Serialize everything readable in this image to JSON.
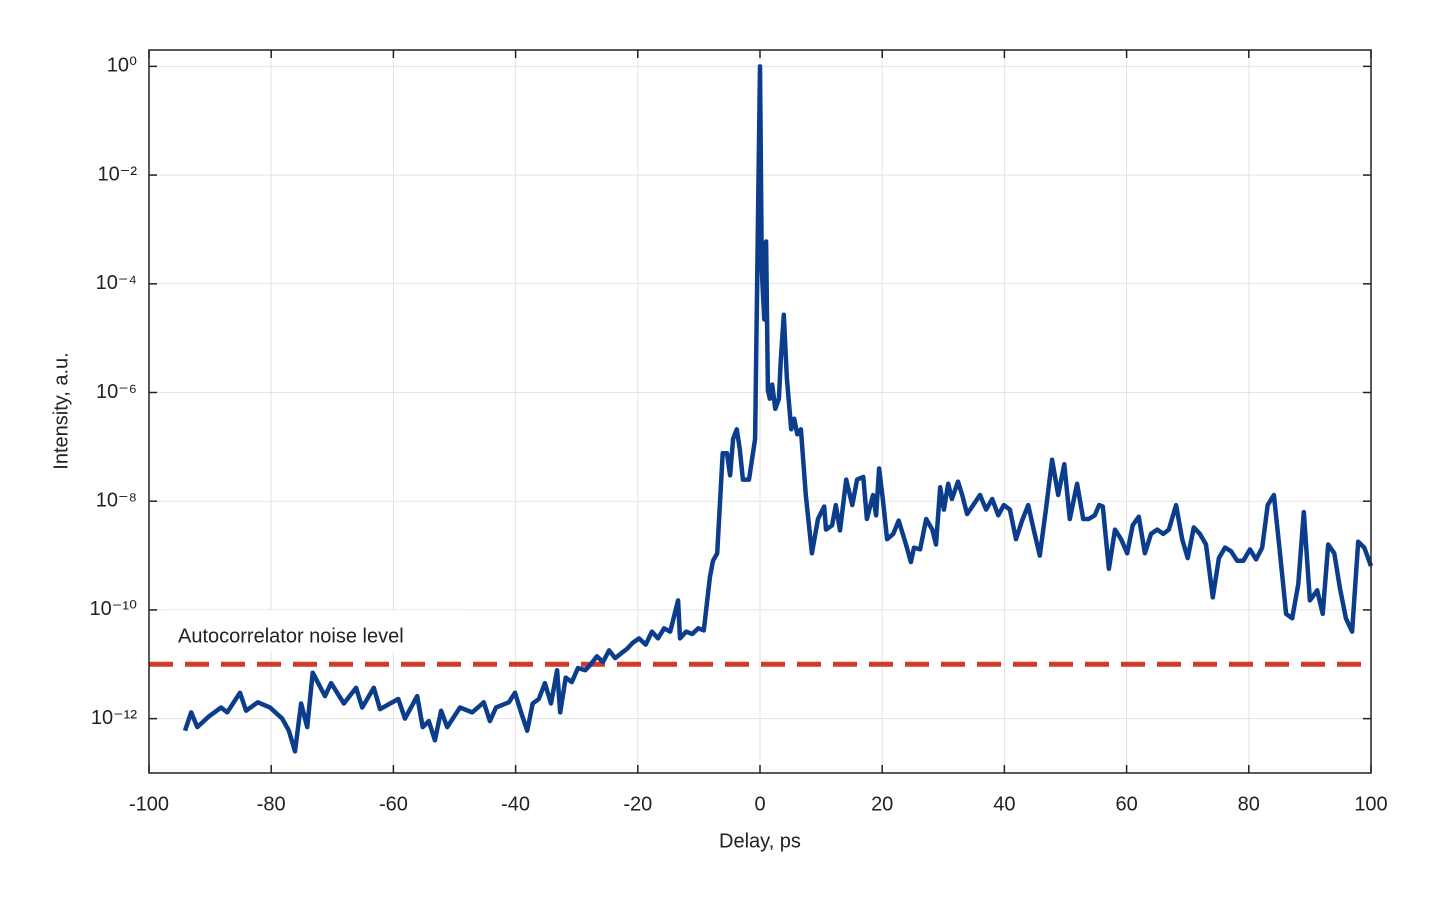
{
  "chart_data": {
    "type": "line",
    "x_label": "Delay, ps",
    "y_label": "Intensity, a.u.",
    "log_y": true,
    "grid": true,
    "xlim": [
      -100,
      100
    ],
    "ylim": [
      1e-13,
      2
    ],
    "xticks": [
      -100,
      -80,
      -60,
      -40,
      -20,
      0,
      20,
      40,
      60,
      80,
      100
    ],
    "yticks": [
      {
        "value": 1,
        "label": "10⁰"
      },
      {
        "value": 0.01,
        "label": "10⁻²"
      },
      {
        "value": 0.0001,
        "label": "10⁻⁴"
      },
      {
        "value": 1e-06,
        "label": "10⁻⁶"
      },
      {
        "value": 1e-08,
        "label": "10⁻⁸"
      },
      {
        "value": 1e-10,
        "label": "10⁻¹⁰"
      },
      {
        "value": 1e-12,
        "label": "10⁻¹²"
      }
    ],
    "reference_line": {
      "value": 1e-11,
      "color": "#d23a2a",
      "label": "Autocorrelator noise level"
    },
    "x": [
      -94.1,
      -93.1,
      -92.1,
      -90.2,
      -88.2,
      -87.2,
      -85.1,
      -84.1,
      -82.2,
      -80.2,
      -78.2,
      -77.1,
      -76.1,
      -75.1,
      -74.1,
      -73.2,
      -71.2,
      -70.2,
      -68.1,
      -66.1,
      -65.1,
      -63.2,
      -62.2,
      -59.2,
      -58.1,
      -56.1,
      -55.2,
      -54.2,
      -53.2,
      -52.2,
      -51.2,
      -49.1,
      -47.1,
      -45.2,
      -44.2,
      -43.2,
      -41.1,
      -40.1,
      -39.1,
      -38.1,
      -37.2,
      -36.2,
      -35.2,
      -34.2,
      -33.2,
      -32.7,
      -31.8,
      -30.8,
      -29.8,
      -28.6,
      -27.7,
      -26.7,
      -25.7,
      -24.7,
      -23.7,
      -22.7,
      -21.8,
      -20.8,
      -19.8,
      -18.7,
      -17.7,
      -16.7,
      -15.7,
      -14.7,
      -13.4,
      -13.1,
      -12.1,
      -11.1,
      -10.1,
      -9.2,
      -8.2,
      -7.7,
      -7.0,
      -6.1,
      -5.4,
      -4.9,
      -4.4,
      -3.8,
      -3.3,
      -2.8,
      -1.8,
      -0.8,
      0,
      0.3,
      0.7,
      1.0,
      1.3,
      1.6,
      2.0,
      2.5,
      3.1,
      3.4,
      3.9,
      4.4,
      5.1,
      5.6,
      6.1,
      6.7,
      7.5,
      8.5,
      9.5,
      10.5,
      10.8,
      11.8,
      12.4,
      13.1,
      14.1,
      15.1,
      15.9,
      16.9,
      17.5,
      18.5,
      19.0,
      19.5,
      20.1,
      20.8,
      21.8,
      22.7,
      23.9,
      24.7,
      25.2,
      26.2,
      27.2,
      28.2,
      28.8,
      29.5,
      30.1,
      30.8,
      31.4,
      32.4,
      33.1,
      33.9,
      34.9,
      36.0,
      37.0,
      38.0,
      39.0,
      39.9,
      40.9,
      41.9,
      42.9,
      43.9,
      44.8,
      45.8,
      46.8,
      47.8,
      48.8,
      49.8,
      50.7,
      51.9,
      52.9,
      53.8,
      54.8,
      55.5,
      56.1,
      57.1,
      58.1,
      59.1,
      60.1,
      61.0,
      62.0,
      63.0,
      64.0,
      65.0,
      66.0,
      66.9,
      68.1,
      69.1,
      70.0,
      71.0,
      72.0,
      73.0,
      74.1,
      75.1,
      76.1,
      77.1,
      78.1,
      79.1,
      80.2,
      81.2,
      82.2,
      83.1,
      84.1,
      85.1,
      86.1,
      87.1,
      88.1,
      89.0,
      90.0,
      91.2,
      92.1,
      93.0,
      94.0,
      94.9,
      95.9,
      96.9,
      97.9,
      98.9,
      100.0
    ],
    "series": [
      {
        "name": "Intensity",
        "color": "#0b3d8c",
        "values": [
          6e-13,
          1.3e-12,
          7e-13,
          1.1e-12,
          1.6e-12,
          1.3e-12,
          3e-12,
          1.4e-12,
          2e-12,
          1.6e-12,
          1e-12,
          6e-13,
          2.5e-13,
          1.9e-12,
          7e-13,
          7e-12,
          2.6e-12,
          4.5e-12,
          1.9e-12,
          3.7e-12,
          1.6e-12,
          3.7e-12,
          1.5e-12,
          2.3e-12,
          1e-12,
          2.6e-12,
          7e-13,
          9e-13,
          4e-13,
          1.4e-12,
          7e-13,
          1.6e-12,
          1.3e-12,
          2e-12,
          9e-13,
          1.6e-12,
          2e-12,
          3e-12,
          1.3e-12,
          6e-13,
          1.9e-12,
          2.3e-12,
          4.5e-12,
          1.9e-12,
          7.8e-12,
          1.3e-12,
          5.7e-12,
          4.7e-12,
          8.5e-12,
          7.8e-12,
          1e-11,
          1.4e-11,
          1.1e-11,
          1.8e-11,
          1.3e-11,
          1.6e-11,
          1.9e-11,
          2.5e-11,
          3e-11,
          2.3e-11,
          4e-11,
          3e-11,
          4.6e-11,
          4e-11,
          1.5e-10,
          3e-11,
          4e-11,
          3.6e-11,
          4.6e-11,
          4.2e-11,
          4e-10,
          8e-10,
          1.1e-09,
          7.6e-08,
          7.6e-08,
          3e-08,
          1.4e-07,
          2.1e-07,
          9e-08,
          2.5e-08,
          2.5e-08,
          1.4e-07,
          1,
          0.00018,
          2.2e-05,
          0.0006,
          1.1e-06,
          7.7e-07,
          1.4e-06,
          5e-07,
          7.7e-07,
          4e-06,
          2.7e-05,
          1.8e-06,
          2.1e-07,
          3.3e-07,
          1.7e-07,
          2.1e-07,
          1.3e-08,
          1.1e-09,
          4.7e-09,
          8e-09,
          3e-09,
          3.6e-09,
          8.5e-09,
          2.9e-09,
          2.5e-08,
          8.5e-09,
          2.5e-08,
          2.8e-08,
          4.7e-09,
          1.3e-08,
          5.5e-09,
          4e-08,
          1.1e-08,
          2e-09,
          2.5e-09,
          4.4e-09,
          1.6e-09,
          7.6e-10,
          1.4e-09,
          1.3e-09,
          4.7e-09,
          3e-09,
          1.6e-09,
          1.8e-08,
          7e-09,
          2.1e-08,
          1.1e-08,
          2.3e-08,
          1.3e-08,
          5.8e-09,
          8.5e-09,
          1.3e-08,
          7e-09,
          1.1e-08,
          5.5e-09,
          8.5e-09,
          7e-09,
          2e-09,
          4.4e-09,
          8.5e-09,
          3e-09,
          1e-09,
          7e-09,
          5.8e-08,
          1.3e-08,
          4.8e-08,
          4.7e-09,
          2.1e-08,
          4.7e-09,
          4.7e-09,
          5.5e-09,
          8.5e-09,
          8e-09,
          5.7e-10,
          3e-09,
          2e-09,
          1.1e-09,
          3.6e-09,
          5.2e-09,
          1.1e-09,
          2.5e-09,
          3e-09,
          2.5e-09,
          3e-09,
          8.5e-09,
          2e-09,
          9e-10,
          3.3e-09,
          2.5e-09,
          1.6e-09,
          1.7e-10,
          9e-10,
          1.4e-09,
          1.2e-09,
          8e-10,
          8e-10,
          1.3e-09,
          8.5e-10,
          1.4e-09,
          8.5e-09,
          1.3e-08,
          1.1e-09,
          8.5e-11,
          7e-11,
          3e-10,
          6.3e-09,
          1.5e-10,
          2.3e-10,
          8.5e-11,
          1.6e-09,
          1.1e-09,
          2.6e-10,
          7e-11,
          4e-11,
          1.8e-09,
          1.4e-09,
          6.4e-10
        ]
      }
    ]
  }
}
